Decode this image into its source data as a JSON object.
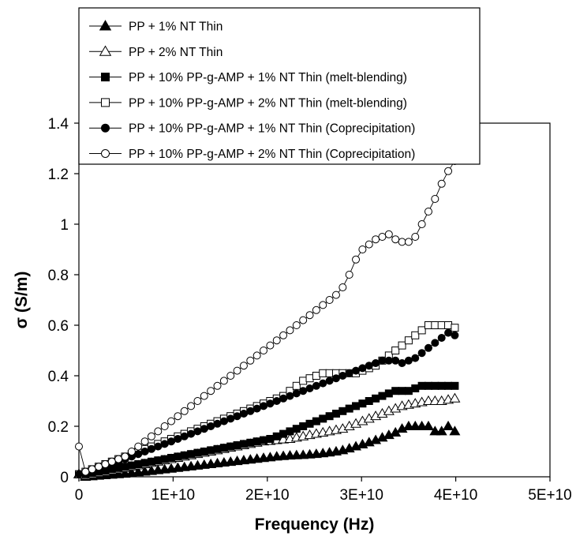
{
  "chart_data": {
    "type": "line",
    "title": "",
    "xlabel": "Frequency (Hz)",
    "ylabel": "σ (S/m)",
    "xlim": [
      0,
      50000000000
    ],
    "ylim": [
      0,
      1.4
    ],
    "x_ticks": [
      {
        "value": 0,
        "label": "0"
      },
      {
        "value": 10000000000,
        "label": "1E+10"
      },
      {
        "value": 20000000000,
        "label": "2E+10"
      },
      {
        "value": 30000000000,
        "label": "3E+10"
      },
      {
        "value": 40000000000,
        "label": "4E+10"
      },
      {
        "value": 50000000000,
        "label": "5E+10"
      }
    ],
    "y_ticks": [
      {
        "value": 0,
        "label": "0"
      },
      {
        "value": 0.2,
        "label": "0.2"
      },
      {
        "value": 0.4,
        "label": "0.4"
      },
      {
        "value": 0.6,
        "label": "0.6"
      },
      {
        "value": 0.8,
        "label": "0.8"
      },
      {
        "value": 1.0,
        "label": "1"
      },
      {
        "value": 1.2,
        "label": "1.2"
      },
      {
        "value": 1.4,
        "label": "1.4"
      }
    ],
    "grid": false,
    "legend_position": "top-left",
    "x_unit_scale": 1000000000,
    "x": [
      0,
      0.7,
      1.4,
      2.1,
      2.8,
      3.5,
      4.2,
      4.9,
      5.6,
      6.3,
      7.0,
      7.7,
      8.4,
      9.1,
      9.8,
      10.5,
      11.2,
      11.9,
      12.6,
      13.3,
      14.0,
      14.7,
      15.4,
      16.1,
      16.8,
      17.5,
      18.2,
      18.9,
      19.6,
      20.3,
      21.0,
      21.7,
      22.4,
      23.1,
      23.8,
      24.5,
      25.2,
      25.9,
      26.6,
      27.3,
      28.0,
      28.7,
      29.4,
      30.1,
      30.8,
      31.5,
      32.2,
      32.9,
      33.6,
      34.3,
      35.0,
      35.7,
      36.4,
      37.1,
      37.8,
      38.5,
      39.2,
      39.9
    ],
    "series": [
      {
        "name": "PP + 1% NT Thin",
        "marker": "triangle-filled",
        "color": "#000000",
        "values": [
          0.01,
          0.0,
          0.002,
          0.004,
          0.006,
          0.008,
          0.01,
          0.012,
          0.015,
          0.018,
          0.02,
          0.023,
          0.026,
          0.029,
          0.032,
          0.035,
          0.038,
          0.041,
          0.044,
          0.047,
          0.05,
          0.053,
          0.056,
          0.059,
          0.062,
          0.065,
          0.068,
          0.071,
          0.074,
          0.077,
          0.08,
          0.082,
          0.084,
          0.085,
          0.086,
          0.088,
          0.09,
          0.093,
          0.096,
          0.1,
          0.105,
          0.112,
          0.12,
          0.128,
          0.136,
          0.145,
          0.155,
          0.165,
          0.175,
          0.19,
          0.2,
          0.2,
          0.2,
          0.2,
          0.18,
          0.18,
          0.2,
          0.18
        ]
      },
      {
        "name": "PP + 2% NT Thin",
        "marker": "triangle-open",
        "color": "#000000",
        "values": [
          0.01,
          0.005,
          0.01,
          0.015,
          0.02,
          0.025,
          0.03,
          0.035,
          0.04,
          0.045,
          0.05,
          0.055,
          0.06,
          0.065,
          0.07,
          0.075,
          0.08,
          0.085,
          0.09,
          0.095,
          0.1,
          0.105,
          0.11,
          0.115,
          0.12,
          0.125,
          0.13,
          0.135,
          0.14,
          0.142,
          0.145,
          0.148,
          0.15,
          0.155,
          0.16,
          0.165,
          0.17,
          0.175,
          0.18,
          0.185,
          0.19,
          0.2,
          0.21,
          0.22,
          0.23,
          0.24,
          0.25,
          0.26,
          0.27,
          0.28,
          0.285,
          0.29,
          0.295,
          0.3,
          0.3,
          0.3,
          0.305,
          0.31
        ]
      },
      {
        "name": "PP + 10% PP-g-AMP + 1% NT Thin (melt-blending)",
        "marker": "square-filled",
        "color": "#000000",
        "values": [
          0.01,
          0.01,
          0.015,
          0.02,
          0.025,
          0.03,
          0.035,
          0.04,
          0.045,
          0.05,
          0.055,
          0.06,
          0.065,
          0.07,
          0.075,
          0.08,
          0.085,
          0.09,
          0.095,
          0.1,
          0.105,
          0.11,
          0.115,
          0.12,
          0.125,
          0.13,
          0.135,
          0.14,
          0.145,
          0.15,
          0.16,
          0.17,
          0.18,
          0.19,
          0.2,
          0.21,
          0.22,
          0.23,
          0.24,
          0.25,
          0.26,
          0.27,
          0.28,
          0.29,
          0.3,
          0.31,
          0.32,
          0.33,
          0.34,
          0.34,
          0.34,
          0.35,
          0.36,
          0.36,
          0.36,
          0.36,
          0.36,
          0.36
        ]
      },
      {
        "name": "PP + 10% PP-g-AMP + 2% NT Thin (melt-blending)",
        "marker": "square-open",
        "color": "#000000",
        "values": [
          0.01,
          0.02,
          0.03,
          0.04,
          0.05,
          0.06,
          0.07,
          0.08,
          0.09,
          0.1,
          0.11,
          0.12,
          0.13,
          0.14,
          0.15,
          0.16,
          0.17,
          0.18,
          0.19,
          0.2,
          0.21,
          0.22,
          0.23,
          0.24,
          0.25,
          0.26,
          0.27,
          0.28,
          0.29,
          0.3,
          0.31,
          0.32,
          0.34,
          0.36,
          0.38,
          0.39,
          0.4,
          0.41,
          0.41,
          0.41,
          0.41,
          0.41,
          0.41,
          0.42,
          0.43,
          0.44,
          0.46,
          0.48,
          0.5,
          0.52,
          0.54,
          0.56,
          0.58,
          0.6,
          0.6,
          0.6,
          0.6,
          0.59
        ]
      },
      {
        "name": "PP + 10% PP-g-AMP + 1% NT Thin (Coprecipitation)",
        "marker": "circle-filled",
        "color": "#000000",
        "values": [
          0.01,
          0.015,
          0.02,
          0.03,
          0.04,
          0.05,
          0.06,
          0.07,
          0.08,
          0.09,
          0.1,
          0.11,
          0.12,
          0.13,
          0.14,
          0.15,
          0.16,
          0.17,
          0.18,
          0.19,
          0.2,
          0.21,
          0.22,
          0.23,
          0.24,
          0.25,
          0.26,
          0.27,
          0.28,
          0.29,
          0.3,
          0.31,
          0.32,
          0.33,
          0.34,
          0.35,
          0.36,
          0.37,
          0.38,
          0.39,
          0.4,
          0.41,
          0.42,
          0.43,
          0.44,
          0.45,
          0.46,
          0.46,
          0.46,
          0.45,
          0.46,
          0.47,
          0.49,
          0.51,
          0.53,
          0.55,
          0.57,
          0.56
        ]
      },
      {
        "name": "PP + 10% PP-g-AMP + 2% NT Thin (Coprecipitation)",
        "marker": "circle-open",
        "color": "#000000",
        "values": [
          0.12,
          0.02,
          0.03,
          0.04,
          0.05,
          0.06,
          0.07,
          0.08,
          0.1,
          0.12,
          0.14,
          0.16,
          0.18,
          0.2,
          0.22,
          0.24,
          0.26,
          0.28,
          0.3,
          0.32,
          0.34,
          0.36,
          0.38,
          0.4,
          0.42,
          0.44,
          0.46,
          0.48,
          0.5,
          0.52,
          0.54,
          0.56,
          0.58,
          0.6,
          0.62,
          0.64,
          0.66,
          0.68,
          0.7,
          0.72,
          0.75,
          0.8,
          0.86,
          0.9,
          0.92,
          0.94,
          0.95,
          0.96,
          0.94,
          0.93,
          0.93,
          0.95,
          1.0,
          1.05,
          1.1,
          1.16,
          1.21,
          1.25
        ]
      }
    ]
  }
}
